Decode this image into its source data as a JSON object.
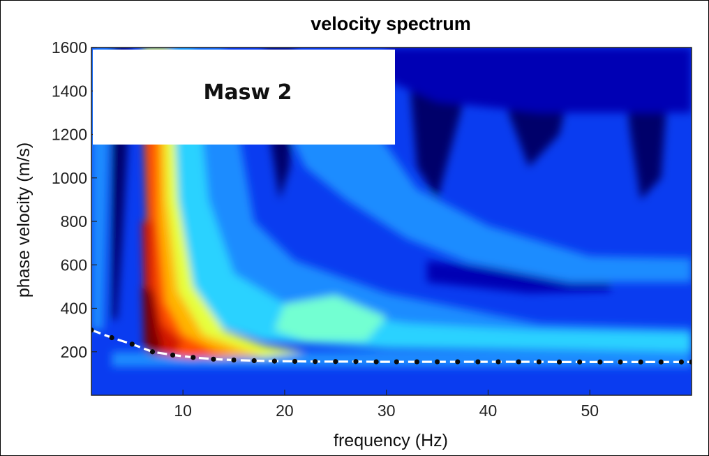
{
  "chart_data": {
    "type": "heatmap",
    "title": "velocity spectrum",
    "xlabel": "frequency (Hz)",
    "ylabel": "phase velocity (m/s)",
    "xlim": [
      1,
      60
    ],
    "ylim": [
      0,
      1600
    ],
    "x_ticks": [
      10,
      20,
      30,
      40,
      50
    ],
    "y_ticks": [
      200,
      400,
      600,
      800,
      1000,
      1200,
      1400,
      1600
    ],
    "annotation": "Masw 2",
    "colormap": [
      "#00006b",
      "#0000b4",
      "#0a3cf0",
      "#1e8cff",
      "#2cd2ff",
      "#73ffd2",
      "#e6ff3c",
      "#ffb400",
      "#ff5000",
      "#d21400",
      "#7a0000"
    ],
    "series": [
      {
        "values": [
          {
            "x": 1,
            "y": 300
          },
          {
            "x": 3,
            "y": 265
          },
          {
            "x": 5,
            "y": 235
          },
          {
            "x": 7,
            "y": 200
          },
          {
            "x": 9,
            "y": 185
          },
          {
            "x": 11,
            "y": 174
          },
          {
            "x": 13,
            "y": 166
          },
          {
            "x": 15,
            "y": 162
          },
          {
            "x": 17,
            "y": 159
          },
          {
            "x": 19,
            "y": 157
          },
          {
            "x": 21,
            "y": 156
          },
          {
            "x": 23,
            "y": 155
          },
          {
            "x": 25,
            "y": 155
          },
          {
            "x": 27,
            "y": 155
          },
          {
            "x": 29,
            "y": 154
          },
          {
            "x": 31,
            "y": 154
          },
          {
            "x": 33,
            "y": 154
          },
          {
            "x": 35,
            "y": 154
          },
          {
            "x": 37,
            "y": 154
          },
          {
            "x": 39,
            "y": 154
          },
          {
            "x": 41,
            "y": 154
          },
          {
            "x": 43,
            "y": 154
          },
          {
            "x": 45,
            "y": 154
          },
          {
            "x": 47,
            "y": 153
          },
          {
            "x": 49,
            "y": 153
          },
          {
            "x": 51,
            "y": 153
          },
          {
            "x": 53,
            "y": 153
          },
          {
            "x": 55,
            "y": 153
          },
          {
            "x": 57,
            "y": 153
          },
          {
            "x": 59,
            "y": 153
          },
          {
            "x": 60,
            "y": 153
          }
        ]
      }
    ]
  }
}
